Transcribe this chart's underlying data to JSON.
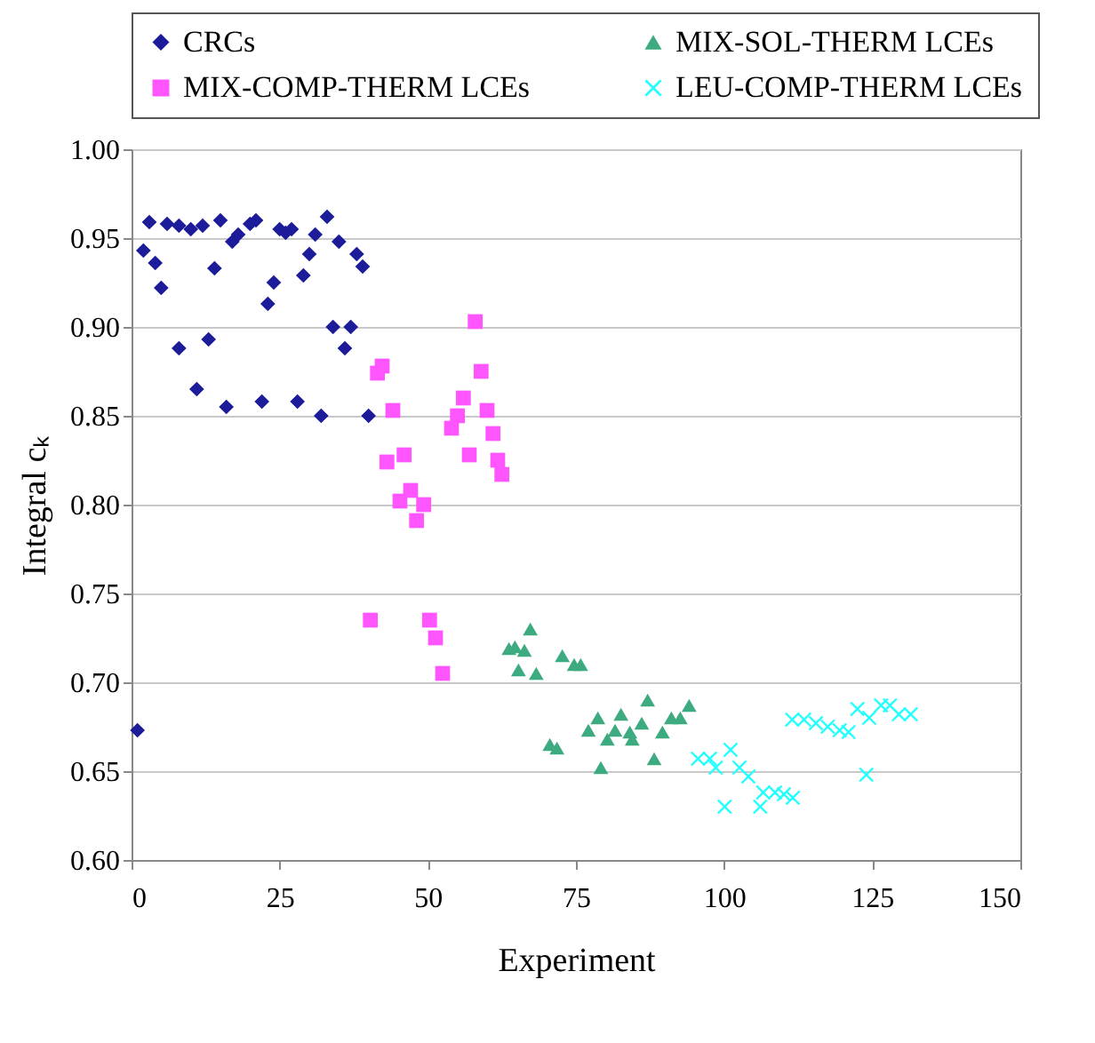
{
  "chart_data": {
    "type": "scatter",
    "xlabel": "Experiment",
    "ylabel": "Integral cₖ",
    "xlim": [
      0,
      150
    ],
    "xticks": [
      0,
      25,
      50,
      75,
      100,
      125,
      150
    ],
    "ylim": [
      0.6,
      1.0
    ],
    "yticks": [
      {
        "value": 0.6,
        "label": "0.60"
      },
      {
        "value": 0.65,
        "label": "0.65"
      },
      {
        "value": 0.7,
        "label": "0.70"
      },
      {
        "value": 0.75,
        "label": "0.75"
      },
      {
        "value": 0.8,
        "label": "0.80"
      },
      {
        "value": 0.85,
        "label": "0.85"
      },
      {
        "value": 0.9,
        "label": "0.90"
      },
      {
        "value": 0.95,
        "label": "0.95"
      },
      {
        "value": 1.0,
        "label": "1.00"
      }
    ],
    "grid": "y",
    "legend": "top",
    "series": [
      {
        "name": "CRCs",
        "color": "#1c1c9a",
        "marker": "diamond",
        "x": [
          1,
          2,
          3,
          4,
          5,
          6,
          8,
          8,
          10,
          11,
          12,
          13,
          14,
          15,
          16,
          17,
          18,
          20,
          21,
          22,
          23,
          24,
          25,
          26,
          27,
          28,
          29,
          30,
          31,
          32,
          33,
          34,
          35,
          36,
          37,
          38,
          39,
          40
        ],
        "values": [
          0.673,
          0.943,
          0.959,
          0.936,
          0.922,
          0.958,
          0.957,
          0.888,
          0.955,
          0.865,
          0.957,
          0.893,
          0.933,
          0.96,
          0.855,
          0.948,
          0.952,
          0.958,
          0.96,
          0.858,
          0.913,
          0.925,
          0.955,
          0.953,
          0.955,
          0.858,
          0.929,
          0.941,
          0.952,
          0.85,
          0.962,
          0.9,
          0.948,
          0.888,
          0.9,
          0.941,
          0.934,
          0.85
        ]
      },
      {
        "name": "MIX-SOL-THERM  LCEs",
        "color": "#3eaa80",
        "marker": "triangle",
        "x": [
          63.7,
          64.7,
          65.3,
          66.3,
          67.3,
          68.3,
          70.6,
          71.8,
          72.7,
          74.7,
          75.8,
          77.1,
          78.7,
          79.2,
          80.3,
          81.6,
          82.6,
          84.1,
          84.5,
          86.1,
          87.1,
          88.2,
          89.6,
          91.1,
          92.6,
          94.1
        ],
        "values": [
          0.719,
          0.72,
          0.707,
          0.718,
          0.73,
          0.705,
          0.665,
          0.663,
          0.715,
          0.71,
          0.71,
          0.673,
          0.68,
          0.652,
          0.668,
          0.673,
          0.682,
          0.672,
          0.668,
          0.677,
          0.69,
          0.657,
          0.672,
          0.68,
          0.68,
          0.687
        ]
      },
      {
        "name": "MIX-COMP-THERM LCEs",
        "color": "#ff55ff",
        "marker": "square",
        "x": [
          40.3,
          41.5,
          42.3,
          43.1,
          44.1,
          45.3,
          46,
          47.1,
          48.1,
          49.3,
          50.3,
          51.3,
          52.5,
          54,
          55,
          56,
          57,
          58,
          59,
          60,
          61,
          61.8,
          62.5
        ],
        "values": [
          0.735,
          0.874,
          0.878,
          0.824,
          0.853,
          0.802,
          0.828,
          0.808,
          0.791,
          0.8,
          0.735,
          0.725,
          0.705,
          0.843,
          0.85,
          0.86,
          0.828,
          0.903,
          0.875,
          0.853,
          0.84,
          0.825,
          0.817
        ]
      },
      {
        "name": "LEU-COMP-THERM LCEs",
        "color": "#22ffff",
        "marker": "cross",
        "x": [
          95.6,
          97.6,
          98.6,
          100.1,
          101.1,
          102.6,
          104.1,
          106.1,
          106.6,
          108.6,
          110.1,
          111.6,
          111.5,
          113.5,
          115.5,
          117.5,
          119.5,
          121,
          122.5,
          124,
          124.5,
          126.5,
          128,
          129.5,
          131.5
        ],
        "values": [
          0.657,
          0.657,
          0.652,
          0.63,
          0.662,
          0.652,
          0.647,
          0.63,
          0.638,
          0.638,
          0.637,
          0.635,
          0.679,
          0.679,
          0.677,
          0.675,
          0.673,
          0.672,
          0.685,
          0.648,
          0.68,
          0.687,
          0.687,
          0.682,
          0.682
        ]
      }
    ]
  }
}
